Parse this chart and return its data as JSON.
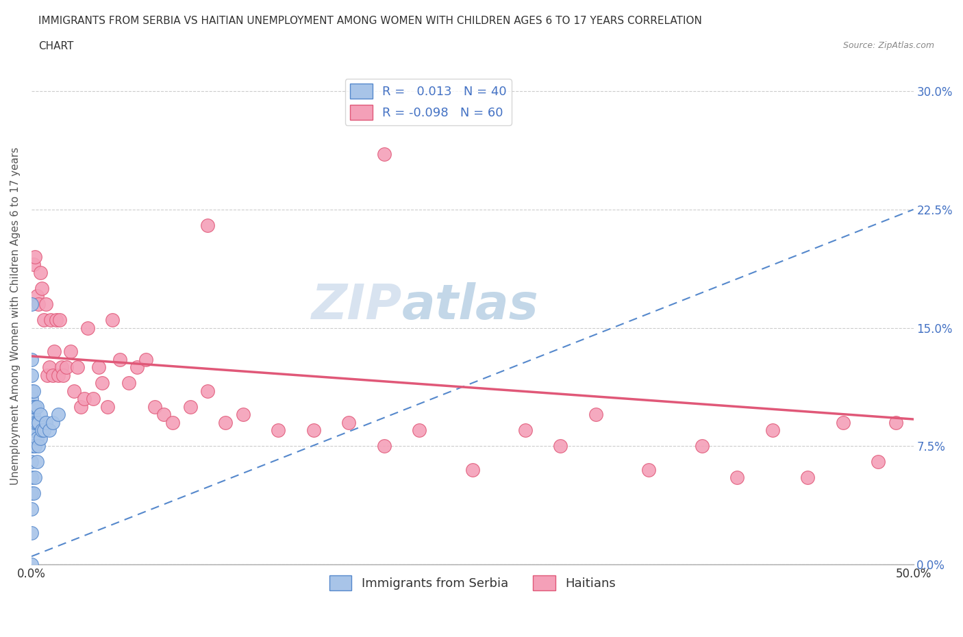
{
  "title_line1": "IMMIGRANTS FROM SERBIA VS HAITIAN UNEMPLOYMENT AMONG WOMEN WITH CHILDREN AGES 6 TO 17 YEARS CORRELATION",
  "title_line2": "CHART",
  "source": "Source: ZipAtlas.com",
  "ylabel": "Unemployment Among Women with Children Ages 6 to 17 years",
  "xlim": [
    0.0,
    0.5
  ],
  "ylim": [
    0.0,
    0.315
  ],
  "serbia_R": 0.013,
  "serbia_N": 40,
  "haiti_R": -0.098,
  "haiti_N": 60,
  "serbia_color": "#a8c4e8",
  "haiti_color": "#f4a0b8",
  "serbia_trend_color": "#5588cc",
  "haiti_trend_color": "#e05878",
  "serbia_points_x": [
    0.0,
    0.0,
    0.0,
    0.0,
    0.0,
    0.0,
    0.0,
    0.0,
    0.0,
    0.0,
    0.0,
    0.0,
    0.0,
    0.0,
    0.0,
    0.0,
    0.001,
    0.001,
    0.001,
    0.001,
    0.001,
    0.001,
    0.002,
    0.002,
    0.002,
    0.002,
    0.003,
    0.003,
    0.003,
    0.003,
    0.004,
    0.004,
    0.005,
    0.005,
    0.006,
    0.007,
    0.008,
    0.01,
    0.012,
    0.015
  ],
  "serbia_points_y": [
    0.0,
    0.02,
    0.035,
    0.045,
    0.055,
    0.065,
    0.075,
    0.085,
    0.09,
    0.095,
    0.1,
    0.105,
    0.11,
    0.12,
    0.13,
    0.165,
    0.045,
    0.075,
    0.085,
    0.095,
    0.1,
    0.11,
    0.055,
    0.075,
    0.09,
    0.1,
    0.065,
    0.08,
    0.09,
    0.1,
    0.075,
    0.09,
    0.08,
    0.095,
    0.085,
    0.085,
    0.09,
    0.085,
    0.09,
    0.095
  ],
  "haiti_points_x": [
    0.001,
    0.002,
    0.003,
    0.004,
    0.005,
    0.006,
    0.007,
    0.008,
    0.009,
    0.01,
    0.011,
    0.012,
    0.013,
    0.014,
    0.015,
    0.016,
    0.017,
    0.018,
    0.02,
    0.022,
    0.024,
    0.026,
    0.028,
    0.03,
    0.032,
    0.035,
    0.038,
    0.04,
    0.043,
    0.046,
    0.05,
    0.055,
    0.06,
    0.065,
    0.07,
    0.075,
    0.08,
    0.09,
    0.1,
    0.11,
    0.12,
    0.14,
    0.16,
    0.18,
    0.2,
    0.22,
    0.25,
    0.28,
    0.3,
    0.32,
    0.35,
    0.38,
    0.4,
    0.42,
    0.44,
    0.46,
    0.48,
    0.49,
    0.2,
    0.1
  ],
  "haiti_points_y": [
    0.19,
    0.195,
    0.17,
    0.165,
    0.185,
    0.175,
    0.155,
    0.165,
    0.12,
    0.125,
    0.155,
    0.12,
    0.135,
    0.155,
    0.12,
    0.155,
    0.125,
    0.12,
    0.125,
    0.135,
    0.11,
    0.125,
    0.1,
    0.105,
    0.15,
    0.105,
    0.125,
    0.115,
    0.1,
    0.155,
    0.13,
    0.115,
    0.125,
    0.13,
    0.1,
    0.095,
    0.09,
    0.1,
    0.11,
    0.09,
    0.095,
    0.085,
    0.085,
    0.09,
    0.075,
    0.085,
    0.06,
    0.085,
    0.075,
    0.095,
    0.06,
    0.075,
    0.055,
    0.085,
    0.055,
    0.09,
    0.065,
    0.09,
    0.26,
    0.215
  ],
  "yticks": [
    0.0,
    0.075,
    0.15,
    0.225,
    0.3
  ],
  "ytick_labels_left": [
    "",
    "",
    "",
    "",
    ""
  ],
  "ytick_labels_right": [
    "0.0%",
    "7.5%",
    "15.0%",
    "22.5%",
    "30.0%"
  ],
  "xticks": [
    0.0,
    0.1,
    0.2,
    0.3,
    0.4,
    0.5
  ],
  "xtick_labels": [
    "0.0%",
    "",
    "",
    "",
    "",
    "50.0%"
  ],
  "watermark_zip": "ZIP",
  "watermark_atlas": "atlas",
  "legend_serbia": "Immigrants from Serbia",
  "legend_haiti": "Haitians",
  "background_color": "#ffffff",
  "grid_color": "#cccccc",
  "serbia_trend_start_y": 0.005,
  "serbia_trend_end_y": 0.225,
  "haiti_trend_start_y": 0.132,
  "haiti_trend_end_y": 0.092
}
